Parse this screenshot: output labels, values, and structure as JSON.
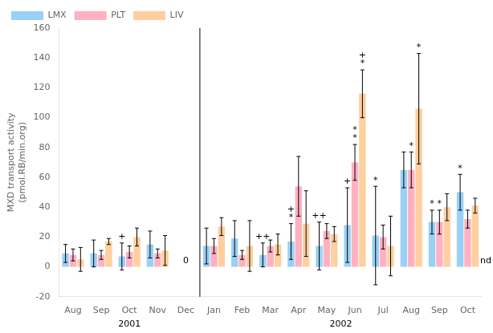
{
  "chart_data": {
    "type": "bar",
    "categories": [
      "Aug",
      "Sep",
      "Oct",
      "Nov",
      "Dec",
      "Jan",
      "Feb",
      "Mar",
      "Apr",
      "May",
      "Jun",
      "Jul",
      "Aug",
      "Sep",
      "Oct"
    ],
    "series": [
      {
        "name": "LMX",
        "values": [
          9,
          9,
          7,
          15,
          0,
          14,
          19,
          8,
          17,
          14,
          28,
          21,
          65,
          30,
          50
        ],
        "errors": [
          6,
          9,
          9,
          9,
          0,
          12,
          12,
          8,
          12,
          16,
          25,
          33,
          12,
          8,
          12
        ]
      },
      {
        "name": "PLT",
        "values": [
          8,
          8,
          10,
          9,
          0,
          14,
          8,
          14,
          54,
          24,
          70,
          20,
          65,
          30,
          32
        ],
        "errors": [
          4,
          3,
          4,
          3,
          0,
          5,
          3,
          4,
          20,
          5,
          12,
          8,
          12,
          8,
          6
        ]
      },
      {
        "name": "LIV",
        "values": [
          5,
          17,
          20,
          11,
          0,
          27,
          14,
          15,
          29,
          22,
          116,
          14,
          106,
          40,
          41
        ],
        "errors": [
          8,
          2,
          6,
          10,
          0,
          6,
          17,
          7,
          22,
          5,
          16,
          20,
          37,
          9,
          5
        ]
      }
    ],
    "ylabel": "MXD transport activity\n(pmol.RB/min.org)",
    "ylim": [
      -20,
      160
    ],
    "yticks": [
      -20,
      0,
      20,
      40,
      60,
      80,
      100,
      120,
      140,
      160
    ],
    "grid": false,
    "legend": "upper left",
    "x_groups": [
      {
        "label": "2001",
        "start": 0,
        "end": 4
      },
      {
        "label": "2002",
        "start": 5,
        "end": 14
      }
    ],
    "annotations": [
      {
        "texts": [
          "0"
        ],
        "index": 4
      },
      {
        "texts": [
          "nd"
        ],
        "index": 14,
        "series": "LIV",
        "side": "right"
      },
      {
        "texts": [
          "+"
        ],
        "index": 2,
        "series": "LMX"
      },
      {
        "texts": [
          "++"
        ],
        "index": 7,
        "series": "LMX"
      },
      {
        "texts": [
          "*",
          "+"
        ],
        "index": 8,
        "series": "LMX"
      },
      {
        "texts": [
          "++"
        ],
        "index": 9,
        "series": "LMX"
      },
      {
        "texts": [
          "+"
        ],
        "index": 10,
        "series": "LMX"
      },
      {
        "texts": [
          "*",
          "+"
        ],
        "index": 10,
        "series": "LIV"
      },
      {
        "texts": [
          "*",
          "*"
        ],
        "index": 10,
        "series": "PLT"
      },
      {
        "texts": [
          "*"
        ],
        "index": 11,
        "series": "LMX"
      },
      {
        "texts": [
          "*"
        ],
        "index": 12,
        "series": "PLT"
      },
      {
        "texts": [
          "*"
        ],
        "index": 12,
        "series": "LIV"
      },
      {
        "texts": [
          "*"
        ],
        "index": 13,
        "series": "LMX"
      },
      {
        "texts": [
          "*"
        ],
        "index": 13,
        "series": "PLT"
      },
      {
        "texts": [
          "*"
        ],
        "index": 14,
        "series": "LMX"
      }
    ]
  }
}
